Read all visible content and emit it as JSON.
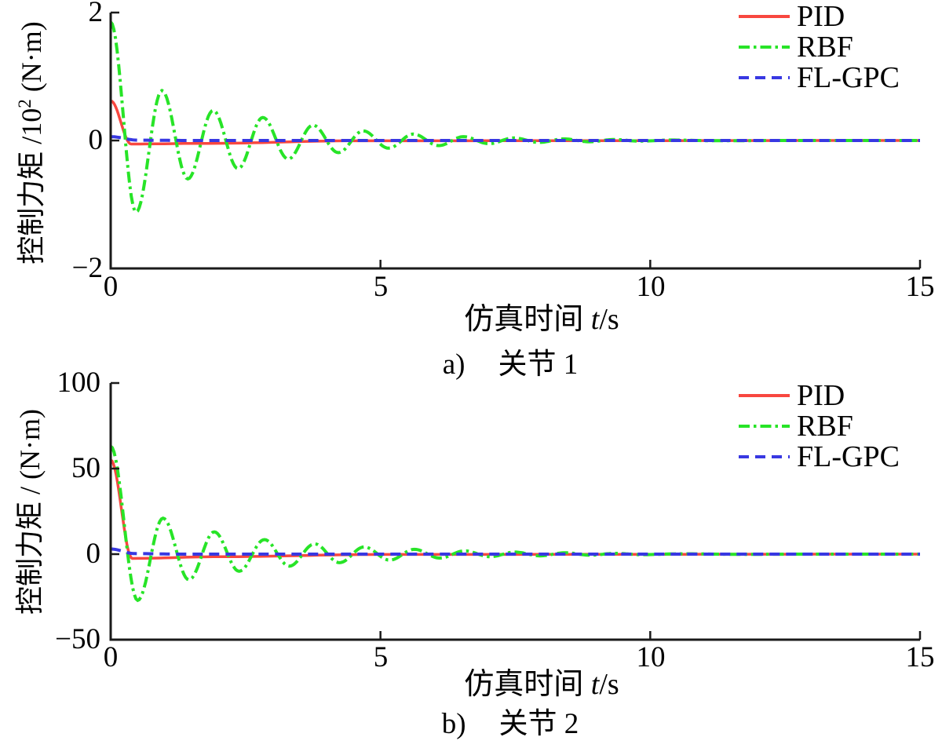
{
  "figure": {
    "background": "#ffffff",
    "axis_color": "#1a1a1a",
    "text_color": "#000000"
  },
  "chart_data": [
    {
      "id": "joint1",
      "type": "line",
      "caption": {
        "tag": "a)",
        "label": "关节 1"
      },
      "xlabel": {
        "prefix": "仿真时间 ",
        "italic": "t",
        "suffix": "/s"
      },
      "ylabel": {
        "prefix": "控制力矩 /10",
        "sup": "2",
        "suffix": " (N·m)"
      },
      "xlim": [
        0,
        15
      ],
      "ylim": [
        -2,
        2
      ],
      "grid": false,
      "xticks": [
        {
          "v": 0,
          "label": "0"
        },
        {
          "v": 5,
          "label": "5"
        },
        {
          "v": 10,
          "label": "10"
        },
        {
          "v": 15,
          "label": "15"
        }
      ],
      "yticks": [
        {
          "v": 2,
          "label": "2"
        },
        {
          "v": 0,
          "label": "0"
        },
        {
          "v": -2,
          "label": "−2"
        }
      ],
      "legend": {
        "position": "top-right-inside",
        "entries": [
          {
            "label": "PID",
            "color": "#f8473f",
            "line_style": "solid"
          },
          {
            "label": "RBF",
            "color": "#27e427",
            "line_style": "dashdot"
          },
          {
            "label": "FL-GPC",
            "color": "#3838e2",
            "line_style": "dashed"
          }
        ]
      },
      "series": [
        {
          "name": "PID",
          "color": "#f8473f",
          "line_style": "solid",
          "width": 3.5,
          "keypoints": [
            [
              0,
              0.62
            ],
            [
              0.38,
              -0.055
            ],
            [
              1.8,
              -0.045
            ],
            [
              4.5,
              -0.005
            ],
            [
              15,
              0
            ]
          ]
        },
        {
          "name": "RBF",
          "color": "#27e427",
          "line_style": "dashdot",
          "width": 4,
          "keypoints": [
            [
              0,
              1.85
            ],
            [
              0.47,
              -1.12
            ],
            [
              0.95,
              0.78
            ],
            [
              1.43,
              -0.6
            ],
            [
              1.9,
              0.47
            ],
            [
              2.36,
              -0.44
            ],
            [
              2.82,
              0.36
            ],
            [
              3.29,
              -0.29
            ],
            [
              3.75,
              0.24
            ],
            [
              4.22,
              -0.19
            ],
            [
              4.68,
              0.15
            ],
            [
              5.15,
              -0.12
            ],
            [
              5.61,
              0.1
            ],
            [
              6.08,
              -0.08
            ],
            [
              6.54,
              0.06
            ],
            [
              7.01,
              -0.05
            ],
            [
              7.47,
              0.04
            ],
            [
              7.94,
              -0.03
            ],
            [
              8.4,
              0.025
            ],
            [
              8.87,
              -0.02
            ],
            [
              9.33,
              0.015
            ],
            [
              9.8,
              -0.01
            ],
            [
              10.4,
              0.007
            ],
            [
              11.2,
              -0.004
            ],
            [
              12.5,
              0
            ],
            [
              15,
              0
            ]
          ]
        },
        {
          "name": "FL-GPC",
          "color": "#3838e2",
          "line_style": "dashed",
          "width": 4,
          "keypoints": [
            [
              0,
              0.06
            ],
            [
              0.5,
              0.005
            ],
            [
              1.5,
              0
            ],
            [
              15,
              0
            ]
          ]
        }
      ]
    },
    {
      "id": "joint2",
      "type": "line",
      "caption": {
        "tag": "b)",
        "label": "关节 2"
      },
      "xlabel": {
        "prefix": "仿真时间 ",
        "italic": "t",
        "suffix": "/s"
      },
      "ylabel": {
        "prefix": "控制力矩 / (N·m)",
        "sup": "",
        "suffix": ""
      },
      "xlim": [
        0,
        15
      ],
      "ylim": [
        -50,
        100
      ],
      "grid": false,
      "xticks": [
        {
          "v": 0,
          "label": "0"
        },
        {
          "v": 5,
          "label": "5"
        },
        {
          "v": 10,
          "label": "10"
        },
        {
          "v": 15,
          "label": "15"
        }
      ],
      "yticks": [
        {
          "v": 100,
          "label": "100"
        },
        {
          "v": 50,
          "label": "50"
        },
        {
          "v": 0,
          "label": "0"
        },
        {
          "v": -50,
          "label": "−50"
        }
      ],
      "legend": {
        "position": "top-right-inside",
        "entries": [
          {
            "label": "PID",
            "color": "#f8473f",
            "line_style": "solid"
          },
          {
            "label": "RBF",
            "color": "#27e427",
            "line_style": "dashdot"
          },
          {
            "label": "FL-GPC",
            "color": "#3838e2",
            "line_style": "dashed"
          }
        ]
      },
      "series": [
        {
          "name": "PID",
          "color": "#f8473f",
          "line_style": "solid",
          "width": 3.5,
          "keypoints": [
            [
              0,
              55
            ],
            [
              0.4,
              -2.5
            ],
            [
              2,
              -1.5
            ],
            [
              5,
              -0.2
            ],
            [
              15,
              0
            ]
          ]
        },
        {
          "name": "RBF",
          "color": "#27e427",
          "line_style": "dashdot",
          "width": 4,
          "keypoints": [
            [
              0,
              63
            ],
            [
              0.5,
              -27
            ],
            [
              0.97,
              21
            ],
            [
              1.45,
              -15
            ],
            [
              1.92,
              13
            ],
            [
              2.38,
              -10
            ],
            [
              2.85,
              8.5
            ],
            [
              3.31,
              -7
            ],
            [
              3.78,
              6
            ],
            [
              4.24,
              -5
            ],
            [
              4.7,
              4.2
            ],
            [
              5.17,
              -3.5
            ],
            [
              5.63,
              2.8
            ],
            [
              6.1,
              -2.3
            ],
            [
              6.56,
              1.9
            ],
            [
              7.03,
              -1.5
            ],
            [
              7.49,
              1.2
            ],
            [
              7.96,
              -1
            ],
            [
              8.42,
              0.8
            ],
            [
              8.89,
              -0.6
            ],
            [
              9.35,
              0.45
            ],
            [
              9.82,
              -0.3
            ],
            [
              10.6,
              0.2
            ],
            [
              11.6,
              -0.1
            ],
            [
              13,
              0
            ],
            [
              15,
              0
            ]
          ]
        },
        {
          "name": "FL-GPC",
          "color": "#3838e2",
          "line_style": "dashed",
          "width": 4,
          "keypoints": [
            [
              0,
              3
            ],
            [
              0.45,
              0.3
            ],
            [
              1.3,
              0
            ],
            [
              15,
              0
            ]
          ]
        }
      ]
    }
  ]
}
